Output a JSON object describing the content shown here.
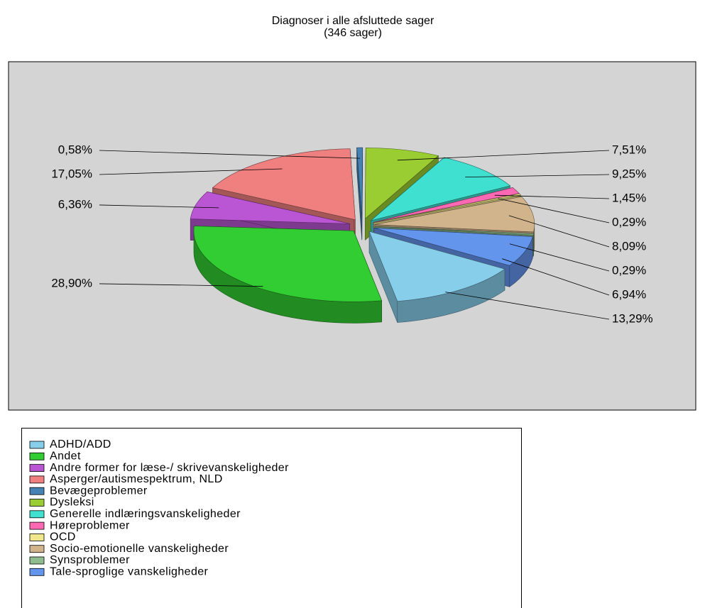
{
  "chart_data": {
    "type": "pie3d",
    "title": "Diagnoser i alle afsluttede sager",
    "subtitle": "(346 sager)",
    "categories": [
      "ADHD/ADD",
      "Andet",
      "Andre former for læse-/ skrivevanskeligheder",
      "Asperger/autismespektrum, NLD",
      "Bevægeproblemer",
      "Dysleksi",
      "Generelle indlæringsvanskeligheder",
      "Høreproblemer",
      "OCD",
      "Socio-emotionelle vanskeligheder",
      "Synsproblemer",
      "Tale-sproglige vanskeligheder"
    ],
    "values": [
      13.29,
      28.9,
      6.36,
      17.05,
      0.58,
      7.51,
      9.25,
      1.45,
      0.29,
      8.09,
      0.29,
      6.94
    ],
    "value_labels": [
      "13,29%",
      "28,90%",
      "6,36%",
      "17,05%",
      "0,58%",
      "7,51%",
      "9,25%",
      "1,45%",
      "0,29%",
      "8,09%",
      "0,29%",
      "6,94%"
    ],
    "colors": [
      "#87ceeb",
      "#32cd32",
      "#ba55d3",
      "#f08080",
      "#4682b4",
      "#9acd32",
      "#40e0d0",
      "#ff69b4",
      "#f0e68c",
      "#d2b48c",
      "#8fbc8f",
      "#6495ed"
    ],
    "legend": "bottom"
  }
}
